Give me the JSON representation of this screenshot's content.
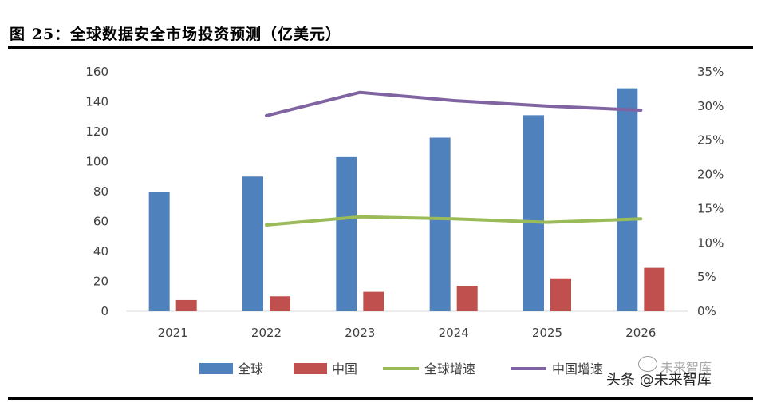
{
  "header": {
    "title": "图 25：全球数据安全市场投资预测（亿美元）"
  },
  "watermark": {
    "text": "头条 @未来智库",
    "faded_text": "未来智库",
    "icon": "wechat-icon"
  },
  "chart_data": {
    "type": "bar",
    "categories": [
      "2021",
      "2022",
      "2023",
      "2024",
      "2025",
      "2026"
    ],
    "series": [
      {
        "name": "全球",
        "type": "bar",
        "axis": "left",
        "color": "#4F81BD",
        "values": [
          80,
          90,
          103,
          116,
          131,
          149
        ]
      },
      {
        "name": "中国",
        "type": "bar",
        "axis": "left",
        "color": "#C0504D",
        "values": [
          7.5,
          10,
          13,
          17,
          22,
          29
        ]
      },
      {
        "name": "全球增速",
        "type": "line",
        "axis": "right",
        "color": "#9BBB59",
        "values": [
          null,
          12.6,
          13.8,
          13.5,
          13.0,
          13.5
        ]
      },
      {
        "name": "中国增速",
        "type": "line",
        "axis": "right",
        "color": "#8064A2",
        "values": [
          null,
          28.6,
          32.0,
          30.8,
          30.0,
          29.4
        ]
      }
    ],
    "y_left": {
      "ylim": [
        0,
        160
      ],
      "ticks": [
        "0",
        "20",
        "40",
        "60",
        "80",
        "100",
        "120",
        "140",
        "160"
      ]
    },
    "y_right": {
      "ylim": [
        0,
        35
      ],
      "ticks": [
        "0%",
        "5%",
        "10%",
        "15%",
        "20%",
        "25%",
        "30%",
        "35%"
      ]
    },
    "grid": false,
    "legend": "bottom"
  }
}
